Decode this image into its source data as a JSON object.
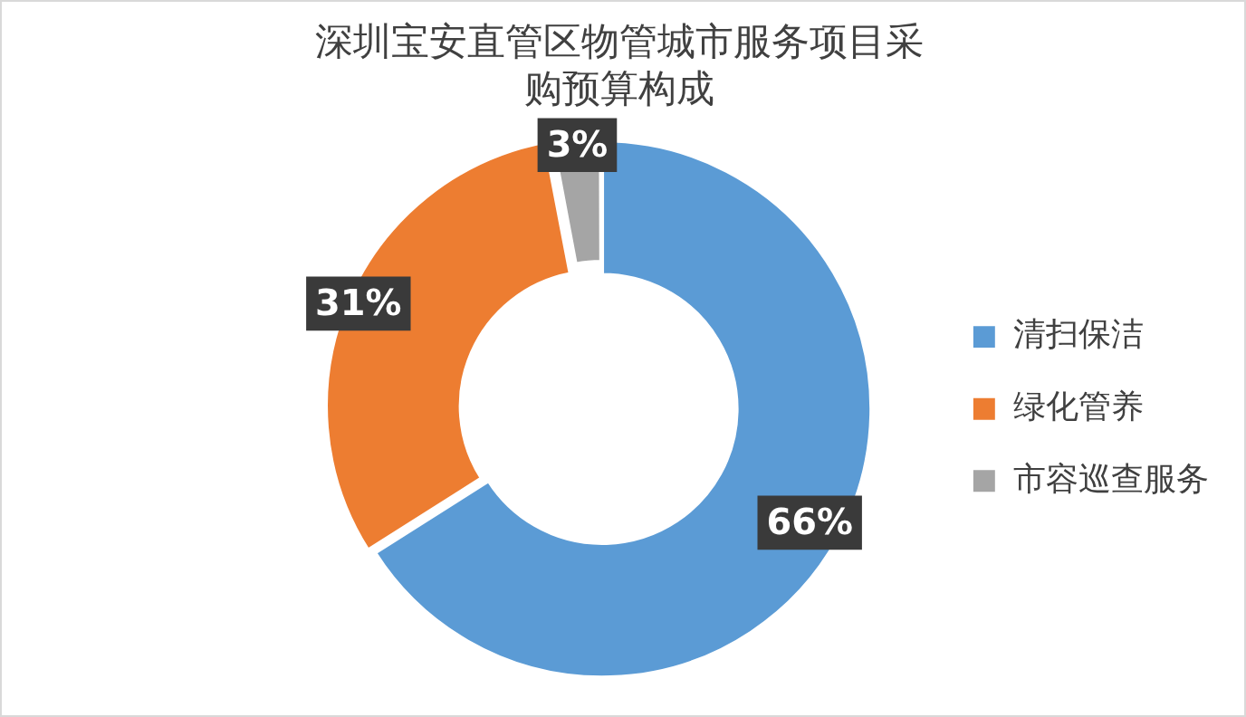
{
  "chart_data": {
    "type": "donut",
    "title": "深圳宝安直管区物管城市服务项目采购预算构成",
    "categories": [
      "清扫保洁",
      "绿化管养",
      "市容巡查服务"
    ],
    "values": [
      66,
      31,
      3
    ],
    "colors": [
      "#5b9bd5",
      "#ed7d31",
      "#a5a5a5"
    ],
    "value_labels": [
      "66%",
      "31%",
      "3%"
    ],
    "legend": "right"
  }
}
